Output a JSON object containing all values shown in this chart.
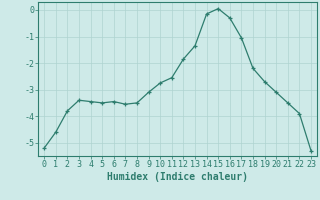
{
  "x": [
    0,
    1,
    2,
    3,
    4,
    5,
    6,
    7,
    8,
    9,
    10,
    11,
    12,
    13,
    14,
    15,
    16,
    17,
    18,
    19,
    20,
    21,
    22,
    23
  ],
  "y": [
    -5.2,
    -4.6,
    -3.8,
    -3.4,
    -3.45,
    -3.5,
    -3.45,
    -3.55,
    -3.5,
    -3.1,
    -2.75,
    -2.55,
    -1.85,
    -1.35,
    -0.15,
    0.05,
    -0.3,
    -1.05,
    -2.2,
    -2.7,
    -3.1,
    -3.5,
    -3.9,
    -5.3
  ],
  "line_color": "#2e7d6e",
  "marker": "+",
  "marker_color": "#2e7d6e",
  "bg_color": "#ceeae8",
  "grid_color": "#afd4d0",
  "axis_color": "#2e7d6e",
  "tick_label_color": "#2e7d6e",
  "xlabel": "Humidex (Indice chaleur)",
  "xlim": [
    -0.5,
    23.5
  ],
  "ylim": [
    -5.5,
    0.3
  ],
  "yticks": [
    0,
    -1,
    -2,
    -3,
    -4,
    -5
  ],
  "xticks": [
    0,
    1,
    2,
    3,
    4,
    5,
    6,
    7,
    8,
    9,
    10,
    11,
    12,
    13,
    14,
    15,
    16,
    17,
    18,
    19,
    20,
    21,
    22,
    23
  ],
  "fontsize_label": 7,
  "fontsize_tick": 6,
  "marker_size": 3,
  "linewidth": 0.9
}
